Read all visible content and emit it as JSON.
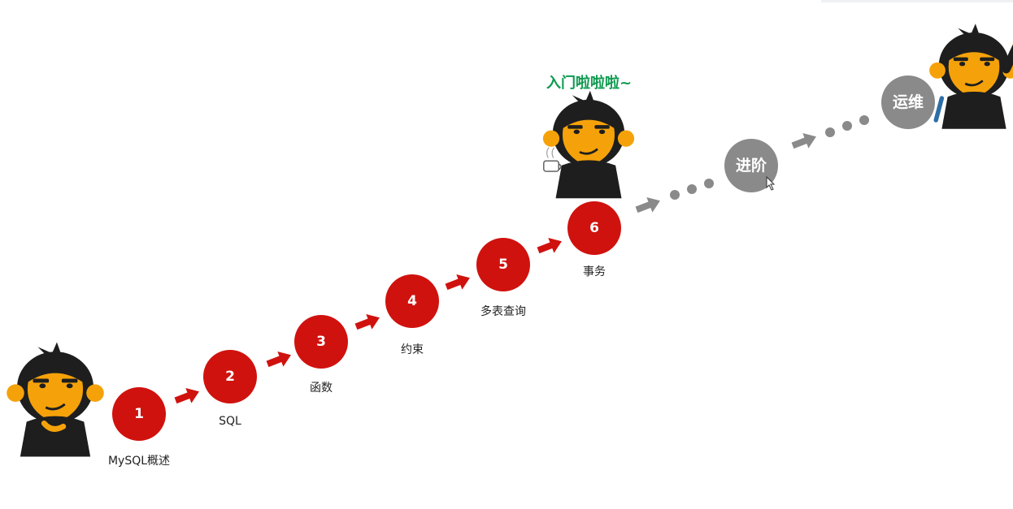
{
  "tagline": "入门啦啦啦~",
  "steps": [
    {
      "num": "1",
      "label": "MySQL概述"
    },
    {
      "num": "2",
      "label": "SQL"
    },
    {
      "num": "3",
      "label": "函数"
    },
    {
      "num": "4",
      "label": "约束"
    },
    {
      "num": "5",
      "label": "多表查询"
    },
    {
      "num": "6",
      "label": "事务"
    }
  ],
  "advanced": {
    "advanced": "进阶",
    "ops": "运维"
  },
  "icons": [
    "monkey-mascot-thinking-icon",
    "monkey-mascot-coffee-icon",
    "monkey-mascot-waving-icon",
    "mouse-cursor-icon"
  ],
  "colors": {
    "step": "#d0120e",
    "future": "#8a8a8a",
    "tagline": "#0e9a50",
    "mascot_face": "#f5a20a",
    "mascot_fur": "#1e1e1e"
  }
}
